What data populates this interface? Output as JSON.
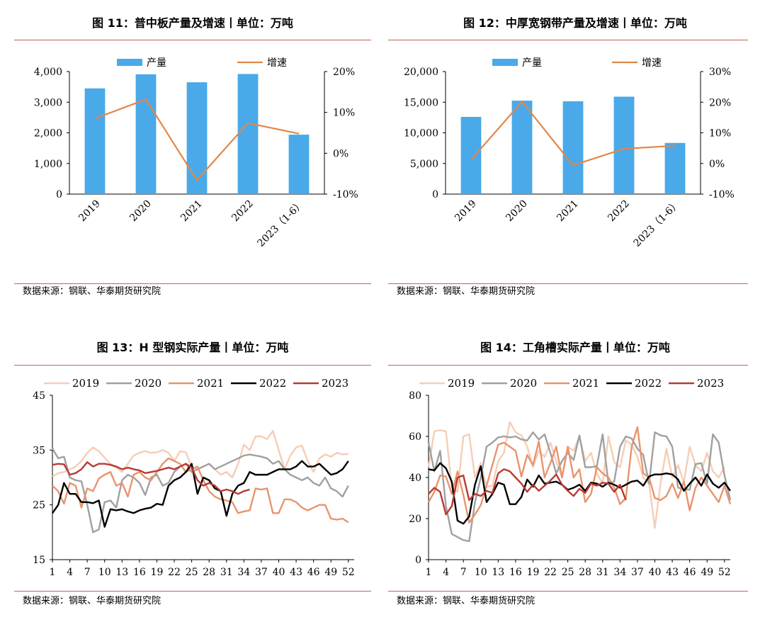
{
  "source_label": "数据来源：钢联、华泰期货研究院",
  "colors": {
    "bar": "#4aa9e9",
    "growth": "#e0874a",
    "rule": "#c7605a"
  },
  "chart_data": [
    {
      "type": "bar",
      "title": "图 11：普中板产量及增速丨单位：万吨",
      "categories": [
        "2019",
        "2020",
        "2021",
        "2022",
        "2023（1-6）"
      ],
      "series": [
        {
          "name": "产量",
          "type": "bar",
          "axis": "left",
          "values": [
            3450,
            3910,
            3650,
            3920,
            1940
          ]
        },
        {
          "name": "增速",
          "type": "line",
          "axis": "right",
          "values": [
            8.5,
            13.2,
            -6.6,
            7.4,
            4.8
          ]
        }
      ],
      "ylim_left": [
        0,
        4000
      ],
      "yticks_left": [
        "4,000",
        "3,000",
        "2,000",
        "1,000",
        "0"
      ],
      "ylim_right": [
        -10,
        20
      ],
      "yticks_right": [
        "20%",
        "10%",
        "0%",
        "-10%"
      ],
      "legend": "top"
    },
    {
      "type": "bar",
      "title": "图 12：中厚宽钢带产量及增速丨单位：万吨",
      "categories": [
        "2019",
        "2020",
        "2021",
        "2022",
        "2023（1-6）"
      ],
      "series": [
        {
          "name": "产量",
          "type": "bar",
          "axis": "left",
          "values": [
            12600,
            15250,
            15150,
            15900,
            8350
          ]
        },
        {
          "name": "增速",
          "type": "line",
          "axis": "right",
          "values": [
            1.2,
            20.2,
            -0.6,
            4.8,
            5.8
          ]
        }
      ],
      "ylim_left": [
        0,
        20000
      ],
      "yticks_left": [
        "20,000",
        "15,000",
        "10,000",
        "5,000",
        "0"
      ],
      "ylim_right": [
        -10,
        30
      ],
      "yticks_right": [
        "30%",
        "20%",
        "10%",
        "0%",
        "-10%"
      ],
      "legend": "top"
    },
    {
      "type": "line",
      "title": "图 13：H 型钢实际产量丨单位：万吨",
      "x_ticks": [
        "1",
        "4",
        "7",
        "10",
        "13",
        "16",
        "19",
        "22",
        "25",
        "28",
        "31",
        "34",
        "37",
        "40",
        "43",
        "46",
        "49",
        "52"
      ],
      "xlim": [
        1,
        53
      ],
      "ylim": [
        15,
        45
      ],
      "yticks": [
        "45",
        "35",
        "25",
        "15"
      ],
      "legend": "top",
      "series": [
        {
          "name": "2019",
          "color": "#f6cdb6",
          "values": [
            30.2,
            30.8,
            31.0,
            31.5,
            32.0,
            33.0,
            34.5,
            35.5,
            34.8,
            33.6,
            32.5,
            31.8,
            31.0,
            32.5,
            34.0,
            34.5,
            34.8,
            34.5,
            34.6,
            35.0,
            34.5,
            33.0,
            34.8,
            34.6,
            32.0,
            31.5,
            32.0,
            32.5,
            31.5,
            30.5,
            31.0,
            30.0,
            32.5,
            36.0,
            35.0,
            37.5,
            37.5,
            37.0,
            38.5,
            35.0,
            31.5,
            34.0,
            35.5,
            35.8,
            33.0,
            31.0,
            33.5,
            34.2,
            33.8,
            34.5,
            34.2,
            34.3
          ]
        },
        {
          "name": "2020",
          "color": "#a0a0a0",
          "values": [
            35.3,
            33.5,
            33.8,
            30.0,
            29.5,
            29.3,
            25.0,
            20.0,
            20.5,
            25.5,
            25.8,
            24.5,
            29.5,
            30.5,
            30.0,
            29.0,
            26.8,
            30.0,
            30.5,
            28.5,
            29.0,
            31.0,
            32.0,
            32.5,
            31.0,
            31.5,
            32.0,
            32.5,
            31.5,
            32.0,
            32.5,
            33.0,
            33.5,
            34.0,
            34.2,
            34.0,
            33.8,
            33.5,
            32.5,
            33.0,
            31.5,
            30.5,
            30.0,
            29.5,
            30.0,
            29.0,
            28.5,
            30.0,
            28.0,
            27.5,
            26.5,
            28.5
          ]
        },
        {
          "name": "2021",
          "color": "#e8946e",
          "values": [
            28.5,
            27.5,
            25.2,
            29.0,
            28.5,
            24.5,
            28.0,
            27.5,
            29.8,
            30.5,
            31.0,
            28.5,
            29.0,
            26.5,
            30.5,
            31.0,
            30.0,
            29.5,
            31.0,
            32.5,
            33.5,
            33.0,
            32.5,
            31.0,
            31.5,
            32.0,
            29.5,
            27.5,
            26.5,
            26.0,
            25.8,
            25.5,
            23.5,
            23.8,
            24.0,
            28.0,
            27.8,
            28.0,
            23.5,
            23.5,
            26.0,
            26.0,
            25.5,
            24.5,
            24.0,
            24.5,
            25.0,
            25.0,
            22.5,
            22.3,
            22.5,
            21.8
          ]
        },
        {
          "name": "2022",
          "color": "#000000",
          "values": [
            23.5,
            25.0,
            29.0,
            27.0,
            27.0,
            25.5,
            25.5,
            25.3,
            25.8,
            21.0,
            24.2,
            24.0,
            24.2,
            23.8,
            23.5,
            24.0,
            24.3,
            24.5,
            25.2,
            25.0,
            28.5,
            29.5,
            30.0,
            31.0,
            32.5,
            27.0,
            30.0,
            29.5,
            28.0,
            27.5,
            23.0,
            27.0,
            28.5,
            29.0,
            31.0,
            30.5,
            30.5,
            30.5,
            31.0,
            31.5,
            31.5,
            31.5,
            32.0,
            33.0,
            32.0,
            32.0,
            32.5,
            31.5,
            30.5,
            30.8,
            31.5,
            33.0
          ]
        },
        {
          "name": "2023",
          "color": "#b83a32",
          "values": [
            32.3,
            32.5,
            32.4,
            30.5,
            30.8,
            31.5,
            32.8,
            32.0,
            32.5,
            32.5,
            32.3,
            32.0,
            31.5,
            31.8,
            31.5,
            31.3,
            30.8,
            31.0,
            31.2,
            31.5,
            31.8,
            31.5,
            32.0,
            32.5,
            31.8,
            29.5,
            28.5,
            29.0,
            28.5,
            27.5,
            27.8,
            27.5,
            27.0,
            27.5,
            27.8
          ]
        }
      ]
    },
    {
      "type": "line",
      "title": "图 14：工角槽实际产量丨单位：万吨",
      "x_ticks": [
        "1",
        "4",
        "7",
        "10",
        "13",
        "16",
        "19",
        "22",
        "25",
        "28",
        "31",
        "34",
        "37",
        "40",
        "43",
        "46",
        "49",
        "52"
      ],
      "xlim": [
        1,
        53
      ],
      "ylim": [
        0,
        80
      ],
      "yticks": [
        "80",
        "60",
        "40",
        "20",
        "0"
      ],
      "legend": "top",
      "series": [
        {
          "name": "2019",
          "color": "#f6cdb6",
          "values": [
            45.0,
            62.5,
            63.0,
            62.5,
            35.0,
            33.0,
            60.0,
            61.0,
            40.0,
            47.0,
            35.5,
            36.0,
            48.0,
            52.0,
            67.0,
            62.0,
            60.5,
            55.0,
            45.0,
            53.0,
            50.0,
            57.0,
            48.0,
            40.0,
            55.0,
            53.0,
            60.0,
            48.0,
            52.0,
            42.0,
            37.0,
            60.0,
            47.5,
            45.0,
            58.0,
            56.0,
            50.0,
            40.0,
            37.0,
            15.5,
            37.5,
            54.0,
            40.0,
            46.0,
            37.5,
            55.0,
            46.0,
            43.0,
            52.0,
            43.0,
            40.0,
            45.0
          ]
        },
        {
          "name": "2020",
          "color": "#a0a0a0",
          "values": [
            57.0,
            43.0,
            53.0,
            26.0,
            12.5,
            11.0,
            9.5,
            9.0,
            28.0,
            40.0,
            55.0,
            57.0,
            59.5,
            60.0,
            59.5,
            60.0,
            58.5,
            58.0,
            62.0,
            58.5,
            61.0,
            52.0,
            42.0,
            48.0,
            52.0,
            48.5,
            60.5,
            45.0,
            45.0,
            45.5,
            61.0,
            37.0,
            38.0,
            55.0,
            60.0,
            59.0,
            54.0,
            51.0,
            37.0,
            62.0,
            60.5,
            60.0,
            55.0,
            35.0,
            34.5,
            34.0,
            46.5,
            47.0,
            37.0,
            61.0,
            57.0,
            41.0,
            29.0
          ]
        },
        {
          "name": "2021",
          "color": "#e8946e",
          "values": [
            28.0,
            33.0,
            41.0,
            40.5,
            32.0,
            43.0,
            31.5,
            18.0,
            22.0,
            26.5,
            36.0,
            46.0,
            56.0,
            57.0,
            55.0,
            53.0,
            40.5,
            51.0,
            46.0,
            57.5,
            40.0,
            47.0,
            55.0,
            40.0,
            55.0,
            40.0,
            44.0,
            28.0,
            32.0,
            45.0,
            42.0,
            40.0,
            35.0,
            27.0,
            30.0,
            55.0,
            64.5,
            42.0,
            40.0,
            30.0,
            29.0,
            31.0,
            37.0,
            30.0,
            38.0,
            24.0,
            35.0,
            40.0,
            36.0,
            32.0,
            28.0,
            36.0,
            27.0
          ]
        },
        {
          "name": "2022",
          "color": "#000000",
          "values": [
            44.0,
            43.5,
            47.0,
            44.5,
            38.0,
            19.0,
            17.5,
            21.0,
            36.5,
            45.5,
            28.0,
            32.0,
            37.5,
            36.5,
            27.0,
            27.0,
            30.5,
            39.0,
            35.5,
            41.0,
            37.0,
            37.5,
            38.0,
            36.5,
            34.0,
            35.0,
            36.5,
            33.5,
            37.5,
            37.0,
            35.5,
            37.5,
            36.5,
            35.0,
            36.5,
            38.0,
            38.5,
            36.0,
            40.5,
            41.5,
            41.5,
            42.0,
            41.5,
            39.0,
            33.5,
            37.0,
            40.0,
            36.0,
            41.5,
            37.0,
            35.0,
            37.5,
            33.5
          ]
        },
        {
          "name": "2023",
          "color": "#b83a32",
          "values": [
            32.0,
            35.0,
            33.0,
            22.0,
            26.0,
            40.0,
            41.0,
            29.0,
            32.0,
            31.0,
            33.5,
            32.5,
            42.0,
            44.0,
            43.0,
            40.0,
            37.0,
            33.0,
            36.5,
            33.5,
            36.0,
            38.5,
            41.5,
            36.5,
            33.5,
            31.0,
            34.5,
            32.5,
            37.0,
            36.0,
            37.5,
            37.0,
            33.0,
            36.5,
            29.0
          ]
        }
      ]
    }
  ]
}
